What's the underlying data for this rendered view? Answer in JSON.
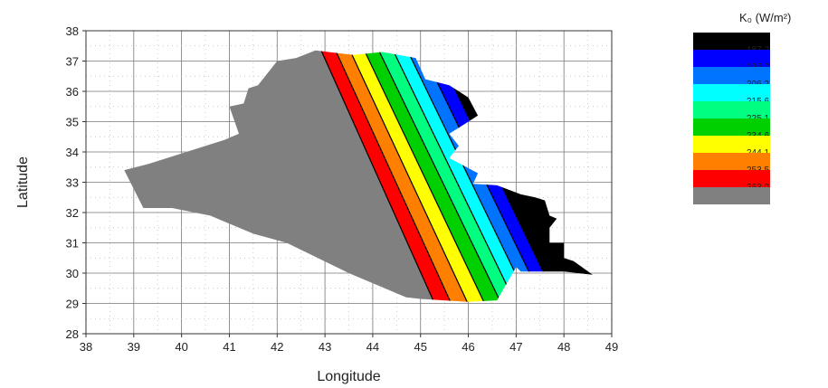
{
  "chart_data": {
    "type": "heatmap",
    "title": "",
    "xlabel": "Longitude",
    "ylabel": "Latitude",
    "xlim": [
      38,
      49
    ],
    "ylim": [
      28,
      38
    ],
    "xticks": [
      "38",
      "39",
      "40",
      "41",
      "42",
      "43",
      "44",
      "45",
      "46",
      "47",
      "48",
      "49"
    ],
    "yticks": [
      "28",
      "29",
      "30",
      "31",
      "32",
      "33",
      "34",
      "35",
      "36",
      "37",
      "38"
    ],
    "grid": true,
    "legend": {
      "title": "K₀ (W/m²)",
      "placement": "right",
      "levels": [
        {
          "label": "187.2",
          "color": "#000000"
        },
        {
          "label": "196.7",
          "color": "#0000ff"
        },
        {
          "label": "206.2",
          "color": "#0073ff"
        },
        {
          "label": "215.6",
          "color": "#00ffff"
        },
        {
          "label": "225.1",
          "color": "#00ff80"
        },
        {
          "label": "234.6",
          "color": "#00d000"
        },
        {
          "label": "244.1",
          "color": "#ffff00"
        },
        {
          "label": "253.5",
          "color": "#ff8000"
        },
        {
          "label": "263.0",
          "color": "#ff0000"
        },
        {
          "label": "",
          "color": "#808080"
        }
      ]
    },
    "band_boundaries": [
      {
        "top_lon": 42.85,
        "bottom_lon": 45.35
      },
      {
        "top_lon": 43.15,
        "bottom_lon": 45.7
      },
      {
        "top_lon": 43.45,
        "bottom_lon": 46.05
      },
      {
        "top_lon": 43.75,
        "bottom_lon": 46.4
      },
      {
        "top_lon": 44.05,
        "bottom_lon": 46.75
      },
      {
        "top_lon": 44.35,
        "bottom_lon": 47.05
      },
      {
        "top_lon": 44.65,
        "bottom_lon": 47.35
      },
      {
        "top_lon": 44.95,
        "bottom_lon": 47.65
      },
      {
        "top_lon": 45.25,
        "bottom_lon": 47.95
      }
    ],
    "band_order": [
      "#808080",
      "#ff0000",
      "#ff8000",
      "#ffff00",
      "#00d000",
      "#00ff80",
      "#00ffff",
      "#0073ff",
      "#0000ff",
      "#000000"
    ],
    "region_outline": [
      [
        42.8,
        37.35
      ],
      [
        43.6,
        37.2
      ],
      [
        44.2,
        37.3
      ],
      [
        44.9,
        37.1
      ],
      [
        45.1,
        36.4
      ],
      [
        45.6,
        36.2
      ],
      [
        46.0,
        35.8
      ],
      [
        46.2,
        35.2
      ],
      [
        45.9,
        34.9
      ],
      [
        45.6,
        34.6
      ],
      [
        45.8,
        34.2
      ],
      [
        45.6,
        33.8
      ],
      [
        46.2,
        33.3
      ],
      [
        46.1,
        32.95
      ],
      [
        46.6,
        32.9
      ],
      [
        47.1,
        32.6
      ],
      [
        47.4,
        32.5
      ],
      [
        47.6,
        32.4
      ],
      [
        47.7,
        31.9
      ],
      [
        47.85,
        31.8
      ],
      [
        47.7,
        31.5
      ],
      [
        47.7,
        31.0
      ],
      [
        48.0,
        31.0
      ],
      [
        48.0,
        30.5
      ],
      [
        48.2,
        30.4
      ],
      [
        48.6,
        29.95
      ],
      [
        48.0,
        30.05
      ],
      [
        47.9,
        30.05
      ],
      [
        47.1,
        30.05
      ],
      [
        47.0,
        30.2
      ],
      [
        46.6,
        29.1
      ],
      [
        46.0,
        29.05
      ],
      [
        45.0,
        29.15
      ],
      [
        44.7,
        29.2
      ],
      [
        43.5,
        30.0
      ],
      [
        42.2,
        31.0
      ],
      [
        41.5,
        31.3
      ],
      [
        40.6,
        31.9
      ],
      [
        39.8,
        32.15
      ],
      [
        39.2,
        32.15
      ],
      [
        38.8,
        33.4
      ],
      [
        39.3,
        33.6
      ],
      [
        40.9,
        34.4
      ],
      [
        41.2,
        34.6
      ],
      [
        41.0,
        35.5
      ],
      [
        41.3,
        35.6
      ],
      [
        41.4,
        36.1
      ],
      [
        41.6,
        36.2
      ],
      [
        41.8,
        36.6
      ],
      [
        42.0,
        37.0
      ],
      [
        42.4,
        37.1
      ],
      [
        42.8,
        37.35
      ]
    ]
  }
}
